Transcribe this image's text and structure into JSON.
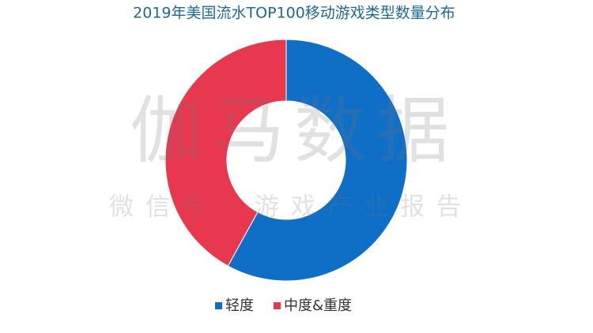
{
  "chart_data": {
    "type": "donut",
    "title": "2019年美国流水TOP100移动游戏类型数量分布",
    "categories": [
      "轻度",
      "中度&重度"
    ],
    "values": [
      58,
      42
    ],
    "colors": [
      "#0f6fc6",
      "#e8384f"
    ],
    "legend": "bottom"
  },
  "watermark": {
    "line1": "伽马数据",
    "line2": "微信号：游戏产业报告"
  }
}
